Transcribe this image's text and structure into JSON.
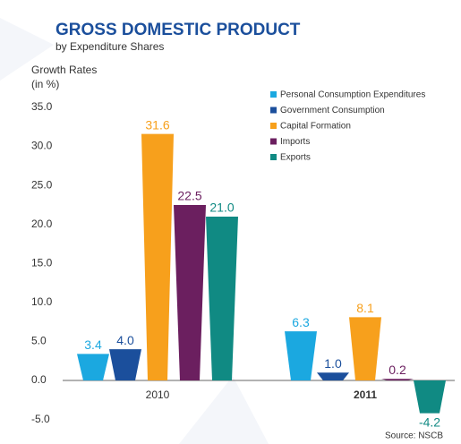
{
  "chart_data": {
    "type": "bar",
    "title": "GROSS DOMESTIC PRODUCT",
    "subtitle": "by Expenditure Shares",
    "y_axis_label": [
      "Growth Rates",
      "(in %)"
    ],
    "source": "Source: NSCB",
    "categories": [
      "2010",
      "2011"
    ],
    "series": [
      {
        "name": "Personal Consumption Expenditures",
        "color": "#1ba8e0",
        "values": [
          3.4,
          6.3
        ],
        "value_labels": [
          "3.4",
          "6.3"
        ]
      },
      {
        "name": "Government Consumption",
        "color": "#1b4f9c",
        "values": [
          4.0,
          1.0
        ],
        "value_labels": [
          "4.0",
          "1.0"
        ]
      },
      {
        "name": "Capital Formation",
        "color": "#f7a01c",
        "values": [
          31.6,
          8.1
        ],
        "value_labels": [
          "31.6",
          "8.1"
        ]
      },
      {
        "name": "Imports",
        "color": "#6b1f5f",
        "values": [
          22.5,
          0.2
        ],
        "value_labels": [
          "22.5",
          "0.2"
        ]
      },
      {
        "name": "Exports",
        "color": "#108a83",
        "values": [
          21.0,
          -4.2
        ],
        "value_labels": [
          "21.0",
          "-4.2"
        ]
      }
    ],
    "ylim": [
      -5,
      35
    ],
    "yticks": [
      {
        "value": 35,
        "label": "35.0"
      },
      {
        "value": 30,
        "label": "30.0"
      },
      {
        "value": 25,
        "label": "25.0"
      },
      {
        "value": 20,
        "label": "20.0"
      },
      {
        "value": 15,
        "label": "15.0"
      },
      {
        "value": 10,
        "label": "10.0"
      },
      {
        "value": 5,
        "label": "5.0"
      },
      {
        "value": 0,
        "label": "0.0"
      },
      {
        "value": -5,
        "label": "-5.0"
      }
    ],
    "legend": "top-right"
  }
}
